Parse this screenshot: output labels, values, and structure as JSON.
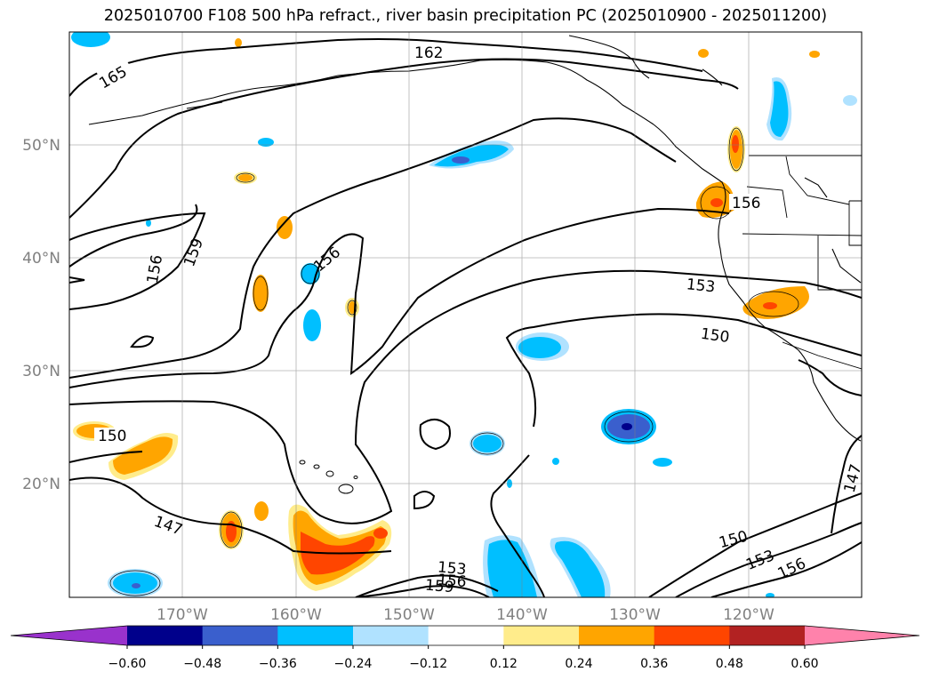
{
  "title": "2025010700 F108 500 hPa refract., river basin precipitation PC (2025010900 - 2025011200)",
  "lat_labels": [
    "50°N",
    "40°N",
    "30°N",
    "20°N"
  ],
  "lon_labels": [
    "170°W",
    "160°W",
    "150°W",
    "140°W",
    "130°W",
    "120°W"
  ],
  "contour_labels": [
    "165",
    "162",
    "159",
    "156",
    "156",
    "156",
    "153",
    "150",
    "150",
    "147",
    "147",
    "150",
    "153",
    "156",
    "153",
    "156",
    "159"
  ],
  "colorbar": {
    "ticks": [
      "−0.60",
      "−0.48",
      "−0.36",
      "−0.24",
      "−0.12",
      "0.12",
      "0.24",
      "0.36",
      "0.48",
      "0.60"
    ],
    "colors": [
      "#9932cc",
      "#00008b",
      "#3a5fcd",
      "#00bfff",
      "#b0e2ff",
      "#ffffff",
      "#ffec8b",
      "#ffa500",
      "#ff4500",
      "#b22222",
      "#ff82ab"
    ]
  },
  "chart_data": {
    "type": "contour",
    "contour_field": "500 hPa refractivity",
    "contour_levels": [
      147,
      150,
      153,
      156,
      159,
      162,
      165
    ],
    "fill_field": "river basin precipitation PC",
    "fill_levels": [
      -0.6,
      -0.48,
      -0.36,
      -0.24,
      -0.12,
      0.12,
      0.24,
      0.36,
      0.48,
      0.6
    ],
    "lat_range": [
      10,
      60
    ],
    "lon_range": [
      -180,
      -110
    ],
    "grid": true
  }
}
